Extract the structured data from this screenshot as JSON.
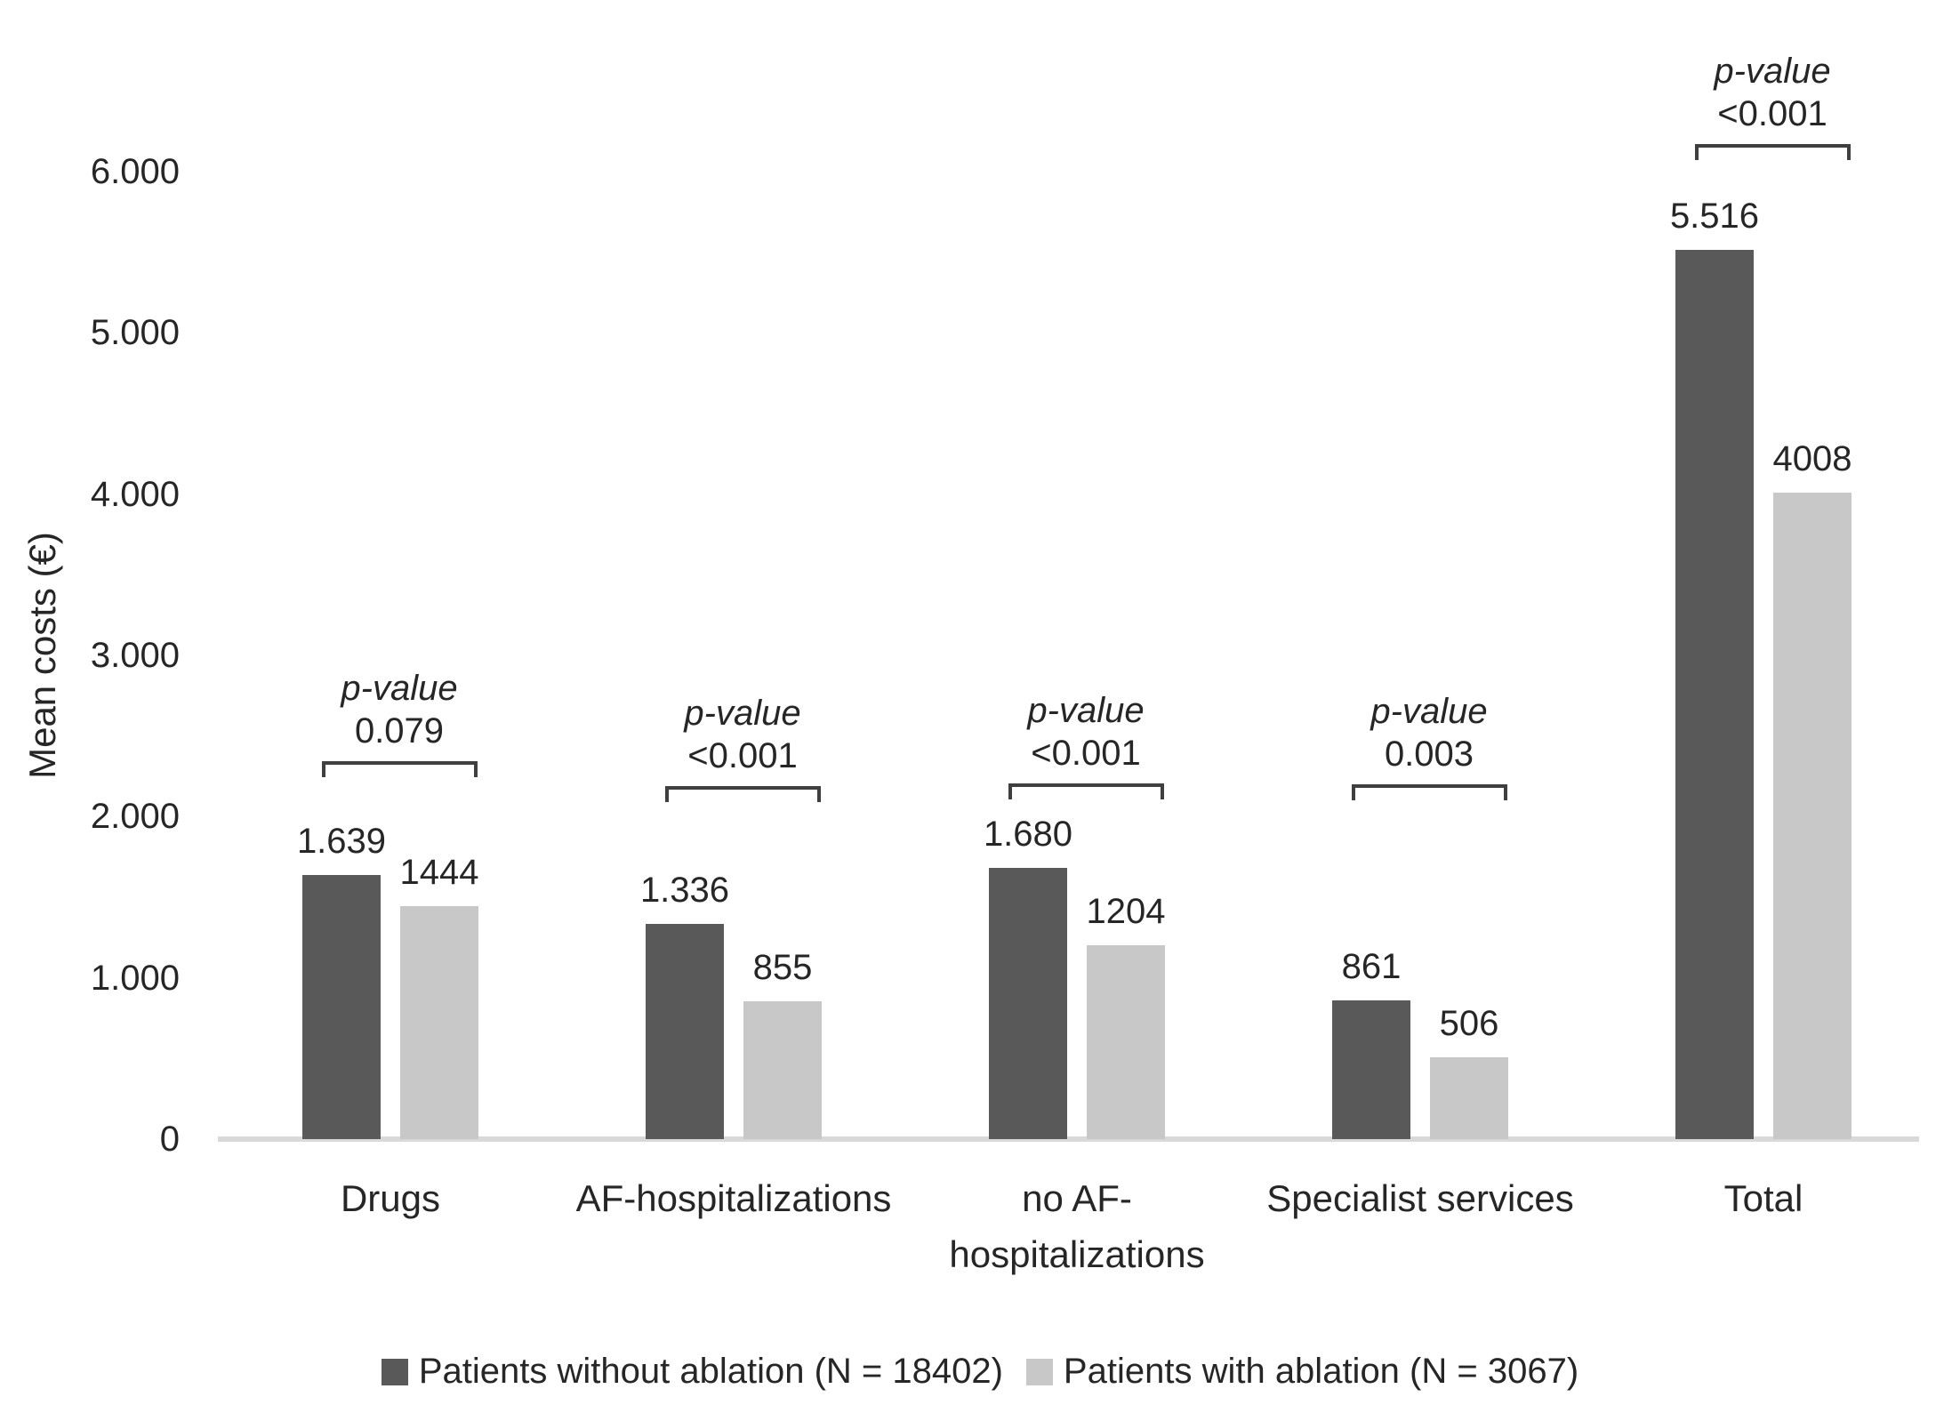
{
  "chart_data": {
    "type": "bar",
    "title": "",
    "xlabel": "",
    "ylabel": "Mean costs (€)",
    "ylim": [
      0,
      6000
    ],
    "grid": false,
    "legend_position": "bottom",
    "categories": [
      "Drugs",
      "AF-hospitalizations",
      "no AF-\nhospitalizations",
      "Specialist services",
      "Total"
    ],
    "series": [
      {
        "name": "Patients without ablation (N = 18402)",
        "color": "#595959",
        "values": [
          1639,
          1336,
          1680,
          861,
          5516
        ],
        "labels": [
          "1.639",
          "1.336",
          "1.680",
          "861",
          "5.516"
        ]
      },
      {
        "name": "Patients with ablation (N = 3067)",
        "color": "#c8c8c8",
        "values": [
          1444,
          855,
          1204,
          506,
          4008
        ],
        "labels": [
          "1444",
          "855",
          "1204",
          "506",
          "4008"
        ]
      }
    ],
    "p_value_label": "p-value",
    "p_values": [
      "0.079",
      "<0.001",
      "<0.001",
      "0.003",
      "<0.001"
    ],
    "y_ticks": [
      {
        "value": 0,
        "label": "0"
      },
      {
        "value": 1000,
        "label": "1.000"
      },
      {
        "value": 2000,
        "label": "2.000"
      },
      {
        "value": 3000,
        "label": "3.000"
      },
      {
        "value": 4000,
        "label": "4.000"
      },
      {
        "value": 5000,
        "label": "5.000"
      },
      {
        "value": 6000,
        "label": "6.000"
      }
    ]
  }
}
